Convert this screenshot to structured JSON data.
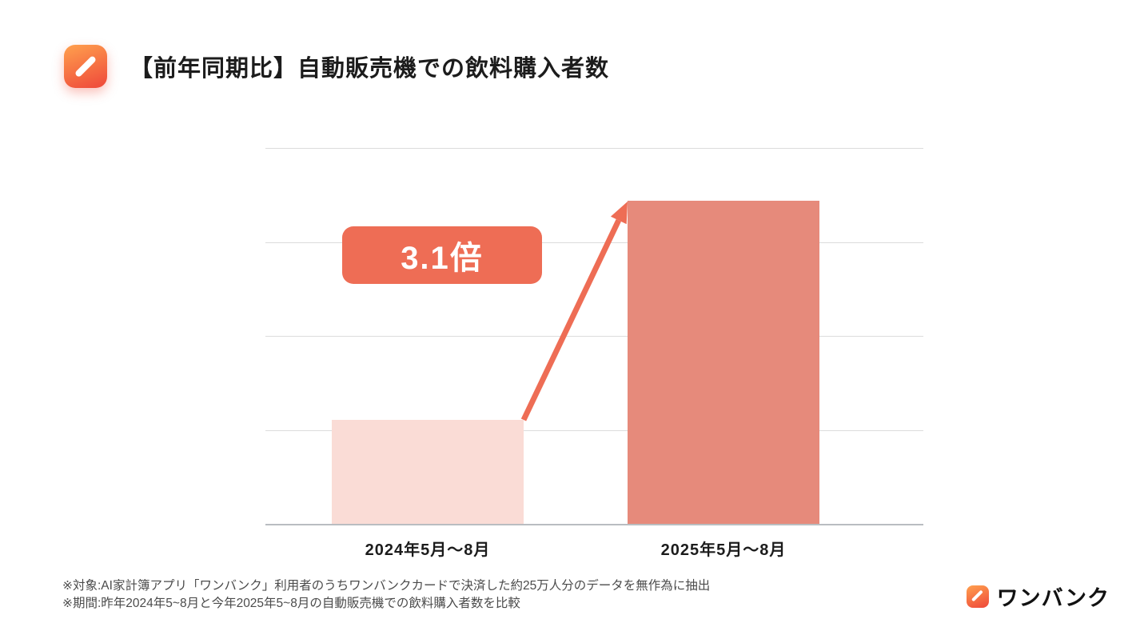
{
  "header": {
    "title": "【前年同期比】自動販売機での飲料購入者数"
  },
  "chart_data": {
    "type": "bar",
    "title": "【前年同期比】自動販売機での飲料購入者数",
    "categories": [
      "2024年5月〜8月",
      "2025年5月〜8月"
    ],
    "values": [
      1,
      3.1
    ],
    "annotation": "3.1倍",
    "xlabel": "",
    "ylabel": "",
    "ylim": [
      0,
      3.6
    ],
    "grid": true,
    "legend": false,
    "bar_colors": [
      "#fadcd6",
      "#e68a7b"
    ],
    "max_bar_pct": 86
  },
  "footnotes": {
    "line1": "※対象:AI家計簿アプリ「ワンバンク」利用者のうちワンバンクカードで決済した約25万人分のデータを無作為に抽出",
    "line2": "※期間:昨年2024年5~8月と今年2025年5~8月の自動販売機での飲料購入者数を比較"
  },
  "logo": {
    "text": "ワンバンク"
  },
  "theme": {
    "accent": "#ee6d55",
    "bar-light": "#fadcd6",
    "bar-dark": "#e68a7b",
    "grid": "#dcdcdc",
    "axis": "#b9bdc1",
    "text": "#1c1c1c",
    "note": "#4b4b4b"
  }
}
